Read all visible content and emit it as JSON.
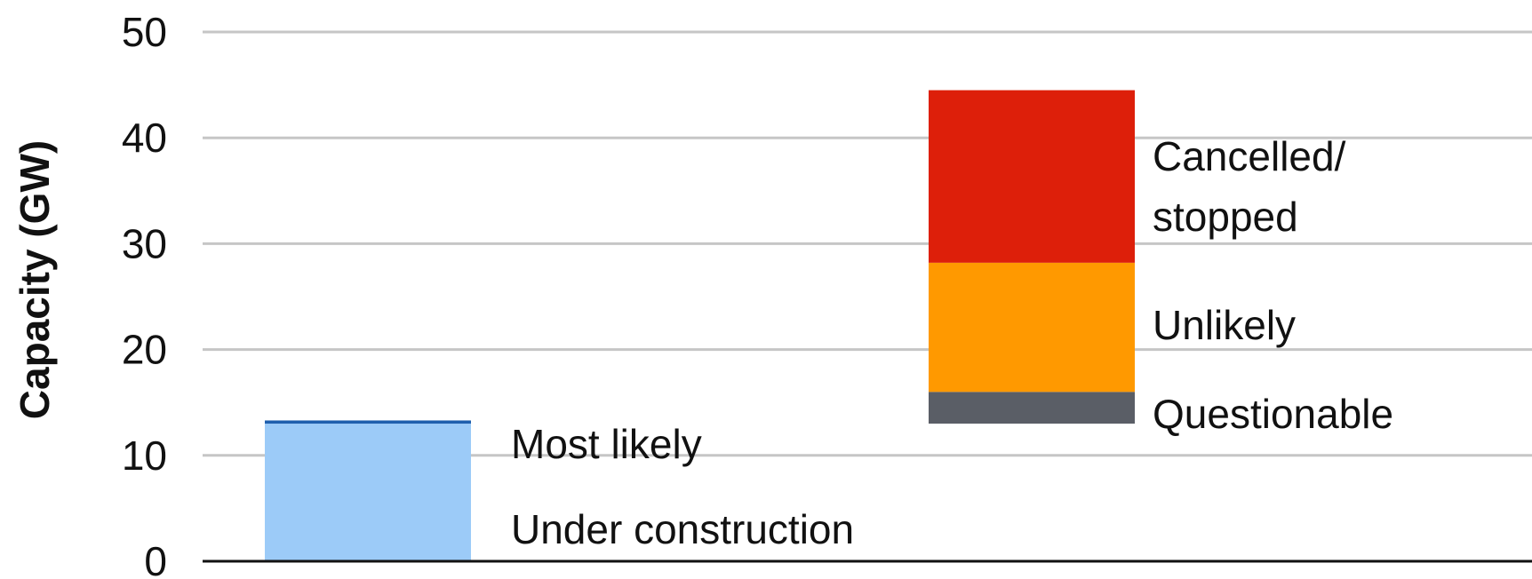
{
  "chart_data": {
    "type": "bar",
    "stacked": true,
    "title": "",
    "xlabel": "",
    "ylabel": "Capacity (GW)",
    "ylim": [
      0,
      50
    ],
    "yticks": [
      "0",
      "10",
      "20",
      "30",
      "40",
      "50"
    ],
    "grid": true,
    "bars": [
      {
        "segments": [
          {
            "name": "Under construction",
            "start": 0,
            "end": 13.0,
            "color": "#9ccbf8"
          },
          {
            "name": "Most likely",
            "start": 13.0,
            "end": 13.3,
            "color": "#1f5fae"
          }
        ]
      },
      {
        "segments": [
          {
            "name": "Questionable",
            "start": 13.0,
            "end": 16.0,
            "color": "#5a5e66"
          },
          {
            "name": "Unlikely",
            "start": 16.0,
            "end": 28.2,
            "color": "#ff9900"
          },
          {
            "name": "Cancelled/\nstopped",
            "start": 28.2,
            "end": 44.5,
            "color": "#dd1f0a"
          }
        ]
      }
    ]
  }
}
